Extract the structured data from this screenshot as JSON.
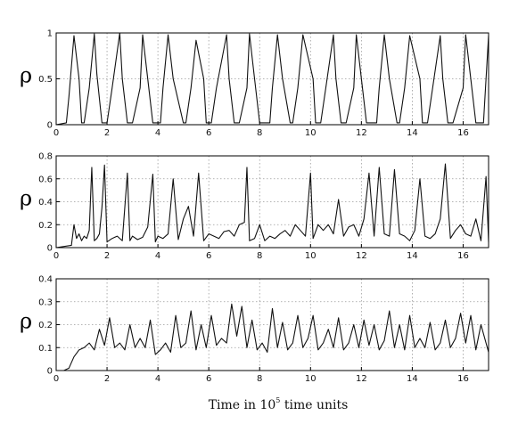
{
  "x_axis_label": {
    "prefix": "Time in 10",
    "superscript": "5",
    "suffix": " time units"
  },
  "chart_data": [
    {
      "type": "line",
      "panel": "top",
      "ylabel": "ρ",
      "xlim": [
        0,
        17
      ],
      "ylim": [
        0,
        1
      ],
      "xticks": [
        "0",
        "2",
        "4",
        "6",
        "8",
        "10",
        "12",
        "14",
        "16"
      ],
      "xtick_values": [
        0,
        2,
        4,
        6,
        8,
        10,
        12,
        14,
        16
      ],
      "yticks": [
        "0",
        "0.5",
        "1"
      ],
      "ytick_values": [
        0,
        0.5,
        1
      ],
      "grid": true,
      "series": [
        {
          "description": "periodic sawtooth-like bursts",
          "x": [
            0,
            0.4,
            0.5,
            0.7,
            0.9,
            1.0,
            1.1,
            1.3,
            1.5,
            1.6,
            1.8,
            2.0,
            2.2,
            2.5,
            2.6,
            2.8,
            3.0,
            3.3,
            3.4,
            3.6,
            3.8,
            4.1,
            4.2,
            4.4,
            4.6,
            5.0,
            5.1,
            5.3,
            5.5,
            5.8,
            5.9,
            6.1,
            6.3,
            6.7,
            6.8,
            7.0,
            7.2,
            7.5,
            7.6,
            7.8,
            8.0,
            8.4,
            8.5,
            8.7,
            8.9,
            9.2,
            9.3,
            9.5,
            9.7,
            10.1,
            10.2,
            10.4,
            10.6,
            10.9,
            11.0,
            11.2,
            11.4,
            11.7,
            11.8,
            12.0,
            12.2,
            12.6,
            12.7,
            12.9,
            13.1,
            13.4,
            13.5,
            13.7,
            13.9,
            14.3,
            14.4,
            14.6,
            14.8,
            15.1,
            15.2,
            15.4,
            15.6,
            16.0,
            16.1,
            16.3,
            16.5,
            16.8,
            16.9,
            17.0
          ],
          "y": [
            0,
            0.02,
            0.3,
            0.97,
            0.5,
            0.02,
            0.02,
            0.4,
            0.99,
            0.55,
            0.02,
            0.02,
            0.4,
            1.0,
            0.5,
            0.02,
            0.02,
            0.4,
            0.98,
            0.5,
            0.02,
            0.02,
            0.4,
            0.98,
            0.5,
            0.02,
            0.02,
            0.4,
            0.92,
            0.5,
            0.02,
            0.02,
            0.4,
            0.98,
            0.5,
            0.02,
            0.02,
            0.4,
            0.99,
            0.5,
            0.02,
            0.02,
            0.4,
            0.98,
            0.5,
            0.02,
            0.02,
            0.4,
            0.98,
            0.5,
            0.02,
            0.02,
            0.4,
            0.98,
            0.5,
            0.02,
            0.02,
            0.4,
            0.98,
            0.5,
            0.02,
            0.02,
            0.4,
            0.98,
            0.5,
            0.02,
            0.02,
            0.4,
            0.97,
            0.5,
            0.02,
            0.02,
            0.4,
            0.97,
            0.5,
            0.02,
            0.02,
            0.4,
            0.98,
            0.5,
            0.02,
            0.02,
            0.5,
            0.97
          ]
        }
      ]
    },
    {
      "type": "line",
      "panel": "middle",
      "ylabel": "ρ",
      "xlim": [
        0,
        17
      ],
      "ylim": [
        0,
        0.8
      ],
      "xticks": [
        "0",
        "2",
        "4",
        "6",
        "8",
        "10",
        "12",
        "14",
        "16"
      ],
      "xtick_values": [
        0,
        2,
        4,
        6,
        8,
        10,
        12,
        14,
        16
      ],
      "yticks": [
        "0",
        "0.2",
        "0.4",
        "0.6",
        "0.8"
      ],
      "ytick_values": [
        0,
        0.2,
        0.4,
        0.6,
        0.8
      ],
      "grid": true,
      "series": [
        {
          "description": "irregular spikes over noisy baseline",
          "x": [
            0,
            0.6,
            0.7,
            0.8,
            0.9,
            1.0,
            1.1,
            1.2,
            1.3,
            1.4,
            1.5,
            1.6,
            1.7,
            1.8,
            1.9,
            2.0,
            2.2,
            2.4,
            2.6,
            2.8,
            2.9,
            3.0,
            3.2,
            3.4,
            3.6,
            3.8,
            3.9,
            4.0,
            4.2,
            4.4,
            4.6,
            4.8,
            5.0,
            5.2,
            5.4,
            5.6,
            5.8,
            6.0,
            6.2,
            6.4,
            6.6,
            6.8,
            7.0,
            7.2,
            7.4,
            7.5,
            7.6,
            7.8,
            8.0,
            8.2,
            8.4,
            8.6,
            8.8,
            9.0,
            9.2,
            9.4,
            9.6,
            9.8,
            10.0,
            10.1,
            10.3,
            10.5,
            10.7,
            10.9,
            11.1,
            11.3,
            11.5,
            11.7,
            11.9,
            12.1,
            12.3,
            12.5,
            12.7,
            12.9,
            13.1,
            13.3,
            13.5,
            13.7,
            13.9,
            14.1,
            14.3,
            14.5,
            14.7,
            14.9,
            15.1,
            15.3,
            15.5,
            15.7,
            15.9,
            16.1,
            16.3,
            16.5,
            16.7,
            16.9,
            17.0
          ],
          "y": [
            0,
            0.02,
            0.2,
            0.08,
            0.12,
            0.06,
            0.1,
            0.08,
            0.15,
            0.7,
            0.06,
            0.08,
            0.12,
            0.35,
            0.72,
            0.05,
            0.08,
            0.1,
            0.06,
            0.65,
            0.06,
            0.1,
            0.07,
            0.09,
            0.18,
            0.64,
            0.05,
            0.1,
            0.08,
            0.12,
            0.6,
            0.07,
            0.25,
            0.36,
            0.1,
            0.65,
            0.06,
            0.12,
            0.1,
            0.08,
            0.14,
            0.15,
            0.1,
            0.2,
            0.22,
            0.7,
            0.06,
            0.08,
            0.2,
            0.06,
            0.1,
            0.08,
            0.12,
            0.15,
            0.1,
            0.2,
            0.15,
            0.1,
            0.65,
            0.08,
            0.2,
            0.15,
            0.2,
            0.12,
            0.42,
            0.1,
            0.18,
            0.2,
            0.1,
            0.25,
            0.65,
            0.1,
            0.7,
            0.12,
            0.1,
            0.68,
            0.12,
            0.1,
            0.06,
            0.15,
            0.6,
            0.1,
            0.08,
            0.12,
            0.25,
            0.73,
            0.08,
            0.15,
            0.2,
            0.12,
            0.1,
            0.25,
            0.06,
            0.62,
            0.05
          ]
        }
      ]
    },
    {
      "type": "line",
      "panel": "bottom",
      "ylabel": "ρ",
      "xlim": [
        0,
        17
      ],
      "ylim": [
        0,
        0.4
      ],
      "xticks": [
        "0",
        "2",
        "4",
        "6",
        "8",
        "10",
        "12",
        "14",
        "16"
      ],
      "xtick_values": [
        0,
        2,
        4,
        6,
        8,
        10,
        12,
        14,
        16
      ],
      "yticks": [
        "0",
        "0.1",
        "0.2",
        "0.3",
        "0.4"
      ],
      "ytick_values": [
        0,
        0.1,
        0.2,
        0.3,
        0.4
      ],
      "grid": true,
      "series": [
        {
          "description": "noisy plateau around 0.1 with occasional spikes",
          "x": [
            0,
            0.3,
            0.5,
            0.7,
            0.9,
            1.1,
            1.3,
            1.5,
            1.7,
            1.9,
            2.1,
            2.3,
            2.5,
            2.7,
            2.9,
            3.1,
            3.3,
            3.5,
            3.7,
            3.9,
            4.1,
            4.3,
            4.5,
            4.7,
            4.9,
            5.1,
            5.3,
            5.5,
            5.7,
            5.9,
            6.1,
            6.3,
            6.5,
            6.7,
            6.9,
            7.1,
            7.3,
            7.5,
            7.7,
            7.9,
            8.1,
            8.3,
            8.5,
            8.7,
            8.9,
            9.1,
            9.3,
            9.5,
            9.7,
            9.9,
            10.1,
            10.3,
            10.5,
            10.7,
            10.9,
            11.1,
            11.3,
            11.5,
            11.7,
            11.9,
            12.1,
            12.3,
            12.5,
            12.7,
            12.9,
            13.1,
            13.3,
            13.5,
            13.7,
            13.9,
            14.1,
            14.3,
            14.5,
            14.7,
            14.9,
            15.1,
            15.3,
            15.5,
            15.7,
            15.9,
            16.1,
            16.3,
            16.5,
            16.7,
            16.9,
            17.0
          ],
          "y": [
            0,
            0.0,
            0.01,
            0.06,
            0.09,
            0.1,
            0.12,
            0.09,
            0.18,
            0.11,
            0.23,
            0.1,
            0.12,
            0.09,
            0.2,
            0.1,
            0.14,
            0.1,
            0.22,
            0.07,
            0.09,
            0.12,
            0.08,
            0.24,
            0.1,
            0.12,
            0.26,
            0.09,
            0.2,
            0.1,
            0.24,
            0.11,
            0.14,
            0.12,
            0.29,
            0.15,
            0.28,
            0.1,
            0.22,
            0.09,
            0.12,
            0.08,
            0.27,
            0.1,
            0.21,
            0.09,
            0.12,
            0.24,
            0.1,
            0.14,
            0.24,
            0.09,
            0.12,
            0.18,
            0.1,
            0.23,
            0.09,
            0.12,
            0.2,
            0.1,
            0.22,
            0.11,
            0.2,
            0.09,
            0.13,
            0.26,
            0.1,
            0.2,
            0.09,
            0.24,
            0.1,
            0.14,
            0.1,
            0.21,
            0.09,
            0.12,
            0.22,
            0.1,
            0.14,
            0.25,
            0.12,
            0.24,
            0.09,
            0.2,
            0.12,
            0.08
          ]
        }
      ]
    }
  ]
}
